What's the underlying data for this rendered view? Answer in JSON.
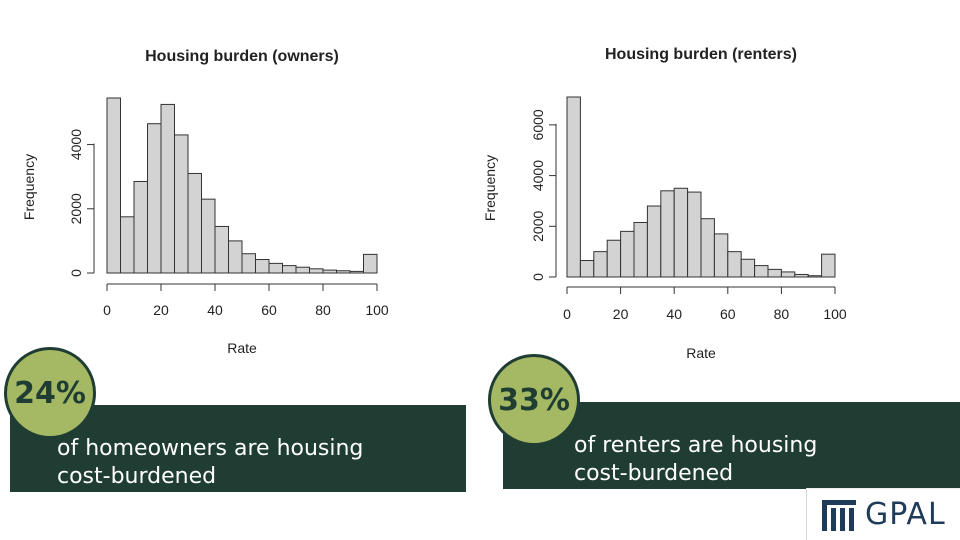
{
  "chart_data": [
    {
      "type": "bar",
      "title": "Housing burden (owners)",
      "xlabel": "Rate",
      "ylabel": "Frequency",
      "bin_edges": [
        0,
        5,
        10,
        15,
        20,
        25,
        30,
        35,
        40,
        45,
        50,
        55,
        60,
        65,
        70,
        75,
        80,
        85,
        90,
        95,
        100
      ],
      "values": [
        5450,
        1750,
        2850,
        4650,
        5250,
        4300,
        3100,
        2300,
        1450,
        1000,
        600,
        420,
        300,
        230,
        180,
        130,
        90,
        70,
        50,
        580
      ],
      "xticks": [
        0,
        20,
        40,
        60,
        80,
        100
      ],
      "yticks": [
        0,
        2000,
        4000
      ],
      "xlim": [
        0,
        100
      ],
      "ylim": [
        0,
        5500
      ]
    },
    {
      "type": "bar",
      "title": "Housing burden (renters)",
      "xlabel": "Rate",
      "ylabel": "Frequency",
      "bin_edges": [
        0,
        5,
        10,
        15,
        20,
        25,
        30,
        35,
        40,
        45,
        50,
        55,
        60,
        65,
        70,
        75,
        80,
        85,
        90,
        95,
        100
      ],
      "values": [
        7100,
        650,
        1000,
        1450,
        1800,
        2150,
        2800,
        3400,
        3500,
        3350,
        2300,
        1700,
        1000,
        700,
        450,
        300,
        200,
        100,
        50,
        900
      ],
      "xticks": [
        0,
        20,
        40,
        60,
        80,
        100
      ],
      "yticks": [
        0,
        2000,
        4000,
        6000
      ],
      "xlim": [
        0,
        100
      ],
      "ylim": [
        0,
        7100
      ]
    }
  ],
  "stats": [
    {
      "value": "24%",
      "text": "of homeowners are housing\ncost-burdened"
    },
    {
      "value": "33%",
      "text": "of renters are housing\ncost-burdened"
    }
  ],
  "logo": {
    "text": "GPAL",
    "icon": "columns-icon"
  },
  "colors": {
    "banner": "#1f3d32",
    "circle": "#a5b964",
    "bar_fill": "#d3d3d3",
    "bar_stroke": "#333333",
    "logo": "#1f3b5a"
  }
}
